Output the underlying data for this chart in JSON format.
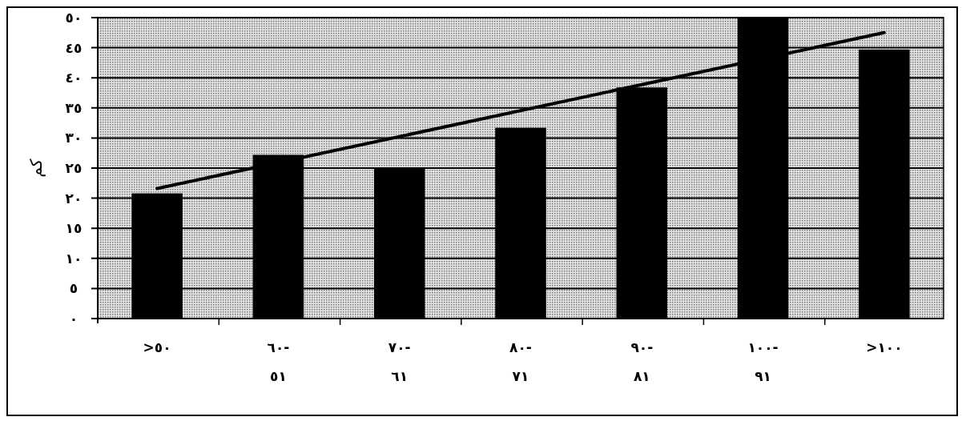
{
  "chart_data": {
    "type": "bar",
    "ylabel": "كم",
    "categories": [
      ">٥٠",
      "٦٠-\n٥١",
      "٧٠-\n٦١",
      "٨٠-\n٧١",
      "٩٠-\n٨١",
      "١٠٠-\n٩١",
      ">١٠٠"
    ],
    "series": [
      {
        "color": "#000000",
        "values": [
          20.8,
          27.2,
          25.0,
          31.7,
          38.4,
          50,
          44.7
        ]
      },
      {
        "type": "line",
        "color": "#000000",
        "x": [
          ">٥٠",
          ">١٠٠"
        ],
        "values": [
          21.6,
          47.5
        ]
      }
    ],
    "ylim": [
      0,
      50
    ],
    "yticks": [
      {
        "value": 0,
        "label": "٠"
      },
      {
        "value": 5,
        "label": "٥"
      },
      {
        "value": 10,
        "label": "١٠"
      },
      {
        "value": 15,
        "label": "١٥"
      },
      {
        "value": 20,
        "label": "٢٠"
      },
      {
        "value": 25,
        "label": "٢٥"
      },
      {
        "value": 30,
        "label": "٣٠"
      },
      {
        "value": 35,
        "label": "٣٥"
      },
      {
        "value": 40,
        "label": "٤٠"
      },
      {
        "value": 45,
        "label": "٤٥"
      },
      {
        "value": 50,
        "label": "٥٠"
      }
    ],
    "grid": "y",
    "marker": "none",
    "line_style": "solid"
  }
}
